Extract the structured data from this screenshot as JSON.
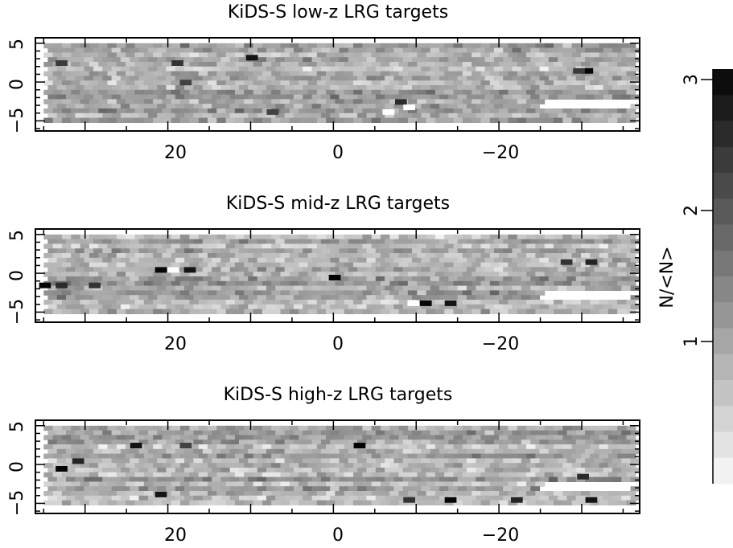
{
  "chart_data": [
    {
      "type": "heatmap",
      "title": "KiDS-S low-z LRG targets",
      "xlim": [
        36,
        -37
      ],
      "ylim": [
        -6.3,
        5.7
      ],
      "x_ticks": [
        20,
        0,
        -20
      ],
      "x_tick_labels": [
        "20",
        "0",
        "−20"
      ],
      "y_ticks": [
        5,
        0,
        -5
      ],
      "y_tick_labels": [
        "5",
        "0",
        "−5"
      ],
      "value_range": [
        0,
        3.2
      ],
      "footprint": {
        "x_range": [
          35,
          -36
        ],
        "y_range": [
          -5.2,
          5.0
        ],
        "dx": 1.1,
        "dy": 0.6
      },
      "gap": {
        "x_range": [
          -25,
          -36
        ],
        "y_range": [
          -3.0,
          -2.5
        ]
      },
      "notable_cells": [
        {
          "x": -30.5,
          "y": 1.5,
          "value": 3.2
        },
        {
          "x": -29.5,
          "y": 1.5,
          "value": 2.5
        },
        {
          "x": 10.0,
          "y": 3.2,
          "value": 3.0
        },
        {
          "x": 19.0,
          "y": 2.5,
          "value": 2.6
        },
        {
          "x": 33.0,
          "y": 2.5,
          "value": 2.5
        },
        {
          "x": 18.0,
          "y": 0.0,
          "value": 2.4
        },
        {
          "x": -8.0,
          "y": -2.5,
          "value": 2.7
        },
        {
          "x": -9.0,
          "y": -3.2,
          "value": 0.0
        },
        {
          "x": -6.5,
          "y": -3.8,
          "value": 0.0
        },
        {
          "x": 7.5,
          "y": -3.8,
          "value": 2.4
        }
      ]
    },
    {
      "type": "heatmap",
      "title": "KiDS-S mid-z LRG targets",
      "xlim": [
        36,
        -37
      ],
      "ylim": [
        -6.3,
        5.7
      ],
      "x_ticks": [
        20,
        0,
        -20
      ],
      "x_tick_labels": [
        "20",
        "0",
        "−20"
      ],
      "y_ticks": [
        5,
        0,
        -5
      ],
      "y_tick_labels": [
        "5",
        "0",
        "−5"
      ],
      "value_range": [
        0,
        3.2
      ],
      "footprint": {
        "x_range": [
          35,
          -36
        ],
        "y_range": [
          -5.2,
          5.0
        ],
        "dx": 1.1,
        "dy": 0.6
      },
      "gap": {
        "x_range": [
          -25,
          -36
        ],
        "y_range": [
          -3.0,
          -2.5
        ]
      },
      "notable_cells": [
        {
          "x": 21.0,
          "y": 0.5,
          "value": 3.2
        },
        {
          "x": 19.5,
          "y": 0.5,
          "value": 0.0
        },
        {
          "x": 17.5,
          "y": 0.5,
          "value": 3.0
        },
        {
          "x": 0.0,
          "y": -0.5,
          "value": 3.2
        },
        {
          "x": -11.0,
          "y": -3.8,
          "value": 3.2
        },
        {
          "x": -9.5,
          "y": -3.8,
          "value": 0.0
        },
        {
          "x": -14.0,
          "y": -3.8,
          "value": 3.0
        },
        {
          "x": -31.0,
          "y": 1.5,
          "value": 2.8
        },
        {
          "x": -28.0,
          "y": 1.5,
          "value": 2.6
        },
        {
          "x": 35.0,
          "y": -1.5,
          "value": 3.2
        },
        {
          "x": 33.0,
          "y": -1.5,
          "value": 2.7
        },
        {
          "x": 29.0,
          "y": -1.5,
          "value": 2.6
        }
      ]
    },
    {
      "type": "heatmap",
      "title": "KiDS-S high-z LRG targets",
      "xlim": [
        36,
        -37
      ],
      "ylim": [
        -6.3,
        5.7
      ],
      "x_ticks": [
        20,
        0,
        -20
      ],
      "x_tick_labels": [
        "20",
        "0",
        "−20"
      ],
      "y_ticks": [
        5,
        0,
        -5
      ],
      "y_tick_labels": [
        "5",
        "0",
        "−5"
      ],
      "value_range": [
        0,
        3.2
      ],
      "footprint": {
        "x_range": [
          35,
          -36
        ],
        "y_range": [
          -5.2,
          5.0
        ],
        "dx": 1.1,
        "dy": 0.6
      },
      "gap": {
        "x_range": [
          -25,
          -36
        ],
        "y_range": [
          -3.0,
          -2.5
        ]
      },
      "notable_cells": [
        {
          "x": 33.0,
          "y": -0.5,
          "value": 3.2
        },
        {
          "x": 31.0,
          "y": 0.5,
          "value": 2.8
        },
        {
          "x": 24.0,
          "y": 2.5,
          "value": 3.0
        },
        {
          "x": 18.0,
          "y": 2.5,
          "value": 2.4
        },
        {
          "x": 21.0,
          "y": -3.8,
          "value": 3.0
        },
        {
          "x": -3.0,
          "y": 2.5,
          "value": 3.2
        },
        {
          "x": -14.0,
          "y": -4.5,
          "value": 3.2
        },
        {
          "x": -22.0,
          "y": -4.5,
          "value": 2.8
        },
        {
          "x": -31.0,
          "y": -4.5,
          "value": 3.0
        },
        {
          "x": -9.0,
          "y": -4.5,
          "value": 2.6
        },
        {
          "x": -30.0,
          "y": -1.5,
          "value": 2.7
        }
      ]
    }
  ],
  "colorbar": {
    "label": "N/<N>",
    "range": [
      0,
      3.2
    ],
    "steps": 16,
    "ticks": [
      1,
      2,
      3
    ],
    "tick_labels": [
      "1",
      "2",
      "3"
    ],
    "colormap": "white-to-black"
  }
}
